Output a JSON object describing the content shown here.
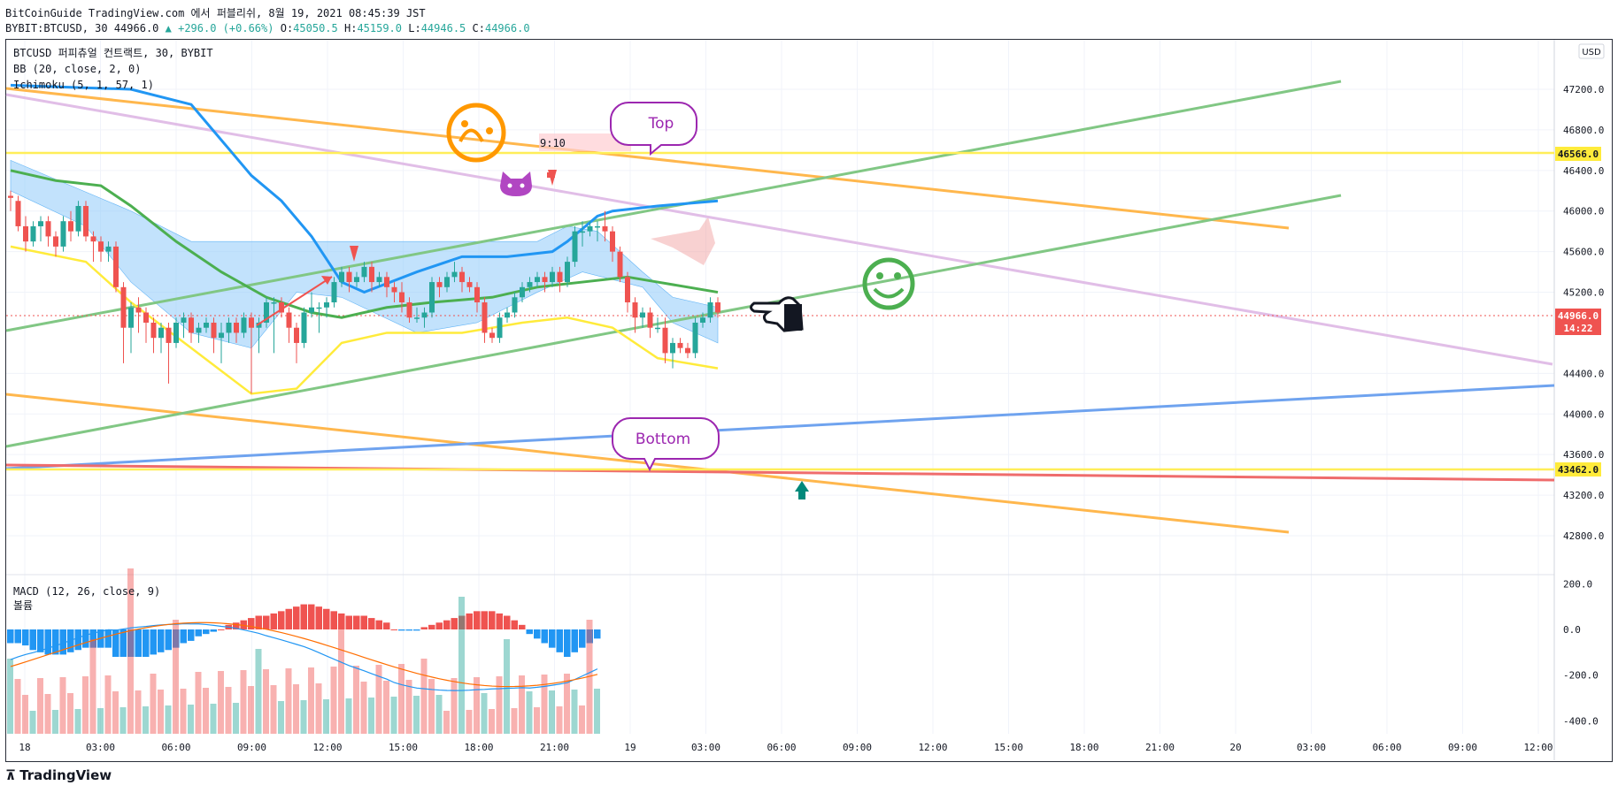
{
  "header": {
    "line1": "BitCoinGuide TradingView.com 에서 퍼블리쉬, 8월 19, 2021 08:45:39 JST",
    "symbol": "BYBIT:BTCUSD, 30",
    "last": "44966.0",
    "change_arrow": "▲",
    "change": "+296.0 (+0.66%)",
    "o_label": "O:",
    "o": "45050.5",
    "h_label": "H:",
    "h": "45159.0",
    "l_label": "L:",
    "l": "44946.5",
    "c_label": "C:",
    "c": "44966.0"
  },
  "legend": {
    "l1": "BTCUSD 퍼피츄얼 컨트랙트, 30, BYBIT",
    "l2": "BB (20, close, 2, 0)",
    "l3": "Ichimoku (5, 1, 57, 1)",
    "macd": "MACD (12, 26, close, 9)",
    "volume": "볼륨"
  },
  "annotations": {
    "top": "Top",
    "bottom": "Bottom",
    "ratio": "9:10",
    "currency": "USD",
    "countdown": "14:22"
  },
  "footer": {
    "logo": "TradingView"
  },
  "colors": {
    "up": "#26a69a",
    "down": "#ef5350",
    "bb_basis": "#2196f3",
    "bb_lower": "#ffeb3b",
    "ichimoku_line": "#4caf50",
    "orange": "#ff9800",
    "green_line": "#66bb6a",
    "purple": "#9c27b0",
    "blue_line": "#5b9cf6"
  },
  "chart_data": [
    {
      "type": "candlestick",
      "title": "BTCUSD 퍼피츄얼 컨트랙트, 30, BYBIT",
      "y_ticks": [
        "47200.0",
        "46800.0",
        "46400.0",
        "46000.0",
        "45600.0",
        "45200.0",
        "44400.0",
        "44000.0",
        "43600.0",
        "43200.0",
        "42800.0"
      ],
      "x_ticks": [
        "18",
        "03:00",
        "06:00",
        "09:00",
        "12:00",
        "15:00",
        "18:00",
        "21:00",
        "19",
        "03:00",
        "06:00",
        "09:00",
        "12:00",
        "15:00",
        "18:00",
        "21:00",
        "20",
        "03:00",
        "06:00",
        "09:00",
        "12:00"
      ],
      "price_labels": [
        "46566.0",
        "43462.0",
        "44966.0"
      ],
      "ylim": [
        42500,
        47600
      ],
      "candles": [
        [
          46150,
          46130,
          46000,
          46200
        ],
        [
          46100,
          45850,
          45800,
          46150
        ],
        [
          45850,
          45700,
          45600,
          45950
        ],
        [
          45700,
          45850,
          45650,
          45900
        ],
        [
          45850,
          45900,
          45700,
          45950
        ],
        [
          45900,
          45750,
          45650,
          45950
        ],
        [
          45750,
          45650,
          45550,
          45800
        ],
        [
          45650,
          45900,
          45600,
          45950
        ],
        [
          45900,
          45800,
          45700,
          46000
        ],
        [
          45800,
          46050,
          45750,
          46100
        ],
        [
          46050,
          45750,
          45700,
          46100
        ],
        [
          45750,
          45700,
          45500,
          45800
        ],
        [
          45700,
          45600,
          45500,
          45750
        ],
        [
          45600,
          45650,
          45500,
          45700
        ],
        [
          45650,
          45250,
          45200,
          45700
        ],
        [
          45250,
          44850,
          44500,
          45300
        ],
        [
          44850,
          45050,
          44600,
          45100
        ],
        [
          45050,
          45000,
          44800,
          45150
        ],
        [
          45000,
          44900,
          44700,
          45050
        ],
        [
          44900,
          44750,
          44600,
          44950
        ],
        [
          44750,
          44850,
          44600,
          44900
        ],
        [
          44850,
          44700,
          44300,
          44900
        ],
        [
          44700,
          44900,
          44650,
          44950
        ],
        [
          44900,
          44950,
          44750,
          45000
        ],
        [
          44950,
          44800,
          44700,
          45000
        ],
        [
          44800,
          44850,
          44700,
          44900
        ],
        [
          44850,
          44900,
          44800,
          44950
        ],
        [
          44900,
          44750,
          44600,
          44950
        ],
        [
          44750,
          44800,
          44500,
          44900
        ],
        [
          44800,
          44900,
          44700,
          44950
        ],
        [
          44900,
          44800,
          44700,
          44950
        ],
        [
          44800,
          44950,
          44750,
          45000
        ],
        [
          44950,
          44850,
          44200,
          45000
        ],
        [
          44850,
          44900,
          44600,
          44950
        ],
        [
          44900,
          45100,
          44850,
          45150
        ],
        [
          45100,
          45100,
          44600,
          45150
        ],
        [
          45100,
          45000,
          44950,
          45150
        ],
        [
          45000,
          44850,
          44700,
          45050
        ],
        [
          44850,
          44700,
          44500,
          44900
        ],
        [
          44700,
          45000,
          44650,
          45050
        ],
        [
          45000,
          45050,
          44950,
          45200
        ],
        [
          45050,
          45050,
          44800,
          45100
        ],
        [
          45050,
          45100,
          44950,
          45150
        ],
        [
          45100,
          45300,
          45050,
          45350
        ],
        [
          45300,
          45400,
          45250,
          45450
        ],
        [
          45400,
          45300,
          45200,
          45450
        ],
        [
          45300,
          45350,
          45250,
          45400
        ],
        [
          45350,
          45450,
          45300,
          45500
        ],
        [
          45450,
          45300,
          45200,
          45500
        ],
        [
          45300,
          45350,
          45250,
          45400
        ],
        [
          45350,
          45250,
          45150,
          45400
        ],
        [
          45250,
          45200,
          45100,
          45300
        ],
        [
          45200,
          45100,
          45000,
          45300
        ],
        [
          45100,
          44950,
          44900,
          45150
        ],
        [
          44950,
          44950,
          44900,
          45050
        ],
        [
          44950,
          45000,
          44850,
          45050
        ],
        [
          45000,
          45300,
          44950,
          45350
        ],
        [
          45300,
          45250,
          45150,
          45350
        ],
        [
          45250,
          45350,
          45200,
          45400
        ],
        [
          45350,
          45400,
          45300,
          45500
        ],
        [
          45400,
          45300,
          45200,
          45450
        ],
        [
          45300,
          45250,
          45200,
          45350
        ],
        [
          45250,
          45100,
          45000,
          45300
        ],
        [
          45100,
          44800,
          44700,
          45150
        ],
        [
          44800,
          44750,
          44700,
          44850
        ],
        [
          44750,
          44950,
          44700,
          45000
        ],
        [
          44950,
          45000,
          44900,
          45050
        ],
        [
          45000,
          45150,
          44950,
          45200
        ],
        [
          45150,
          45250,
          45100,
          45300
        ],
        [
          45250,
          45300,
          45200,
          45350
        ],
        [
          45300,
          45350,
          45250,
          45400
        ],
        [
          45350,
          45300,
          45200,
          45400
        ],
        [
          45300,
          45400,
          45250,
          45450
        ],
        [
          45400,
          45300,
          45200,
          45450
        ],
        [
          45300,
          45500,
          45250,
          45550
        ],
        [
          45500,
          45800,
          45450,
          45850
        ],
        [
          45800,
          45800,
          45650,
          45900
        ],
        [
          45800,
          45850,
          45750,
          45900
        ],
        [
          45850,
          45850,
          45700,
          45900
        ],
        [
          45850,
          45800,
          45700,
          46000
        ],
        [
          45800,
          45600,
          45500,
          45850
        ],
        [
          45600,
          45350,
          45300,
          45650
        ],
        [
          45350,
          45100,
          45000,
          45400
        ],
        [
          45100,
          44950,
          44800,
          45150
        ],
        [
          44950,
          45000,
          44850,
          45050
        ],
        [
          45000,
          44850,
          44750,
          45050
        ],
        [
          44850,
          44850,
          44800,
          44950
        ],
        [
          44850,
          44600,
          44500,
          44950
        ],
        [
          44600,
          44700,
          44450,
          44750
        ],
        [
          44700,
          44650,
          44600,
          44750
        ],
        [
          44650,
          44600,
          44550,
          44700
        ],
        [
          44600,
          44900,
          44550,
          44950
        ],
        [
          44900,
          44950,
          44850,
          45000
        ],
        [
          44950,
          45100,
          44900,
          45150
        ],
        [
          45100,
          45000,
          44950,
          45150
        ]
      ],
      "bb_basis": [
        [
          0,
          47240
        ],
        [
          16,
          47200
        ],
        [
          24,
          47050
        ],
        [
          28,
          46700
        ],
        [
          32,
          46350
        ],
        [
          36,
          46100
        ],
        [
          40,
          45750
        ],
        [
          44,
          45300
        ],
        [
          47,
          45200
        ],
        [
          54,
          45400
        ],
        [
          60,
          45550
        ],
        [
          66,
          45550
        ],
        [
          72,
          45600
        ],
        [
          74,
          45700
        ],
        [
          78,
          45950
        ],
        [
          80,
          46000
        ],
        [
          86,
          46050
        ],
        [
          94,
          46100
        ]
      ],
      "bb_lower": [
        [
          0,
          45650
        ],
        [
          10,
          45500
        ],
        [
          16,
          45100
        ],
        [
          24,
          44650
        ],
        [
          32,
          44200
        ],
        [
          38,
          44250
        ],
        [
          44,
          44700
        ],
        [
          50,
          44800
        ],
        [
          60,
          44800
        ],
        [
          68,
          44900
        ],
        [
          74,
          44950
        ],
        [
          80,
          44850
        ],
        [
          86,
          44550
        ],
        [
          94,
          44450
        ]
      ],
      "ichimoku_base": [
        [
          0,
          46400
        ],
        [
          6,
          46300
        ],
        [
          12,
          46250
        ],
        [
          16,
          46050
        ],
        [
          22,
          45700
        ],
        [
          28,
          45400
        ],
        [
          34,
          45150
        ],
        [
          40,
          45000
        ],
        [
          44,
          44950
        ],
        [
          50,
          45050
        ],
        [
          56,
          45100
        ],
        [
          64,
          45150
        ],
        [
          70,
          45250
        ],
        [
          76,
          45300
        ],
        [
          82,
          45350
        ],
        [
          86,
          45300
        ],
        [
          94,
          45200
        ]
      ],
      "cloud_top": [
        [
          0,
          46500
        ],
        [
          16,
          46000
        ],
        [
          24,
          45700
        ],
        [
          40,
          45700
        ],
        [
          70,
          45700
        ],
        [
          74,
          45850
        ],
        [
          78,
          45800
        ],
        [
          84,
          45400
        ],
        [
          88,
          45150
        ],
        [
          94,
          45050
        ]
      ],
      "cloud_bottom": [
        [
          0,
          46200
        ],
        [
          10,
          45850
        ],
        [
          16,
          45300
        ],
        [
          24,
          44800
        ],
        [
          32,
          44650
        ],
        [
          38,
          45200
        ],
        [
          44,
          45150
        ],
        [
          54,
          44800
        ],
        [
          62,
          44900
        ],
        [
          70,
          45200
        ],
        [
          76,
          45400
        ],
        [
          84,
          45250
        ],
        [
          88,
          44900
        ],
        [
          94,
          44700
        ]
      ],
      "macd_axis": [
        "200.0",
        "0.0",
        "-200.0",
        "-400.0"
      ],
      "macd_hist": [
        -60,
        -60,
        -70,
        -90,
        -100,
        -110,
        -110,
        -110,
        -100,
        -90,
        -80,
        -80,
        -80,
        -80,
        -120,
        -120,
        -120,
        -120,
        -120,
        -110,
        -100,
        -90,
        -80,
        -60,
        -50,
        -30,
        -20,
        -10,
        0,
        20,
        30,
        40,
        50,
        60,
        60,
        70,
        80,
        90,
        100,
        110,
        110,
        100,
        90,
        80,
        70,
        60,
        60,
        60,
        50,
        40,
        30,
        0,
        -5,
        -5,
        -5,
        10,
        20,
        30,
        40,
        50,
        60,
        70,
        80,
        80,
        80,
        70,
        60,
        40,
        20,
        -20,
        -40,
        -60,
        -80,
        -100,
        -120,
        -100,
        -80,
        -60,
        -40
      ]
    }
  ]
}
